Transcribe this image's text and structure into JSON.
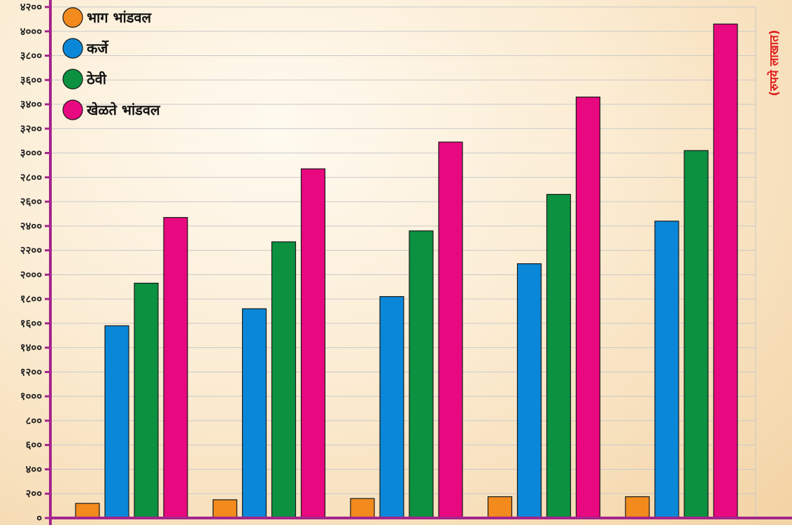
{
  "chart_data": {
    "type": "bar",
    "categories": [
      "",
      "",
      "",
      "",
      ""
    ],
    "series": [
      {
        "name": "भाग भांडवल",
        "color": "#f28a1e",
        "values": [
          120,
          150,
          160,
          175,
          175
        ]
      },
      {
        "name": "कर्जे",
        "color": "#0a87d8",
        "values": [
          1580,
          1720,
          1820,
          2090,
          2440
        ]
      },
      {
        "name": "ठेवी",
        "color": "#0b9140",
        "values": [
          1930,
          2270,
          2360,
          2660,
          3020
        ]
      },
      {
        "name": "खेळते भांडवल",
        "color": "#e8087f",
        "values": [
          2470,
          2870,
          3090,
          3460,
          4060
        ]
      }
    ],
    "ylabel": "(रुपये लाखात)",
    "ylim": [
      0,
      4200
    ],
    "yticks": [
      0,
      200,
      400,
      600,
      800,
      1000,
      1200,
      1400,
      1600,
      1800,
      2000,
      2200,
      2400,
      2600,
      2800,
      3000,
      3200,
      3400,
      3600,
      3800,
      4000,
      4200
    ],
    "ytick_labels": [
      "०",
      "२००",
      "४००",
      "६००",
      "८००",
      "१०००",
      "१२००",
      "१४००",
      "१६००",
      "१८००",
      "२०००",
      "२२००",
      "२४००",
      "२६००",
      "२८००",
      "३०००",
      "३२००",
      "३४००",
      "३६००",
      "३८००",
      "४०००",
      "४२००"
    ],
    "grid": true,
    "legend_position": "top-left",
    "axis_color": "#a3268c"
  }
}
